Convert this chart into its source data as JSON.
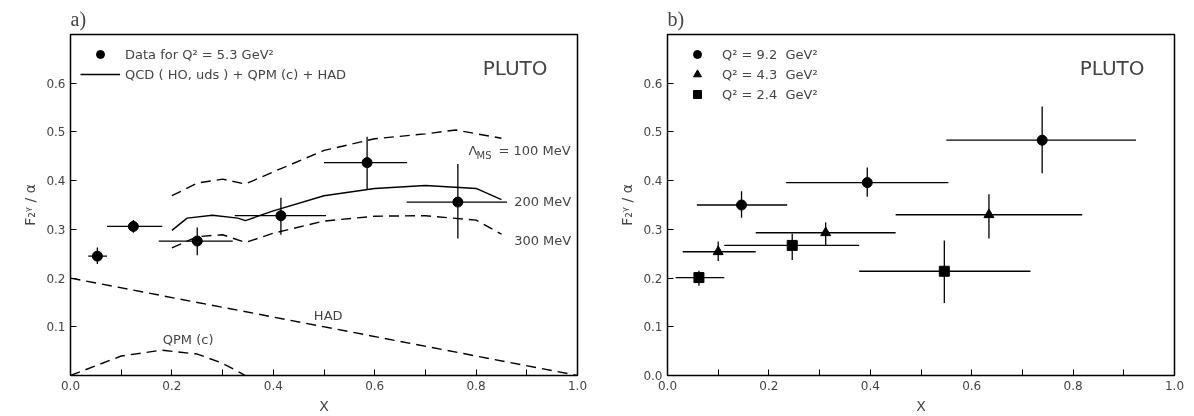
{
  "chart_data": [
    {
      "type": "scatter",
      "title": "a)",
      "xlabel": "X",
      "ylabel": "F₂ᵞ / α",
      "xlim": [
        0,
        1.0
      ],
      "ylim": [
        0,
        0.7
      ],
      "xticks": [
        {
          "value": 0,
          "label": "0.0"
        },
        {
          "value": 0.1,
          "label": null
        },
        0.2,
        {
          "value": 0.3,
          "label": null
        },
        0.4,
        {
          "value": 0.5,
          "label": null
        },
        0.6,
        {
          "value": 0.7,
          "label": null
        },
        0.8,
        {
          "value": 0.9,
          "label": null
        },
        {
          "value": 1.0,
          "label": "1.0"
        }
      ],
      "yticks": [
        {
          "value": 0,
          "label": null
        },
        0.1,
        0.2,
        0.3,
        0.4,
        0.5,
        0.6
      ],
      "grid": false,
      "legend": "top left",
      "series": [
        {
          "name": "Data for Q² = 5.3 GeV²",
          "marker": "circle",
          "color": "#000000",
          "x": [
            0.053,
            0.124,
            0.25,
            0.415,
            0.585,
            0.764
          ],
          "values": [
            0.245,
            0.306,
            0.276,
            0.328,
            0.437,
            0.356
          ],
          "errors": [
            [
              0.229,
              0.263
            ],
            [
              0.293,
              0.319
            ],
            [
              0.247,
              0.304
            ],
            [
              0.289,
              0.365
            ],
            [
              0.382,
              0.49
            ],
            [
              0.281,
              0.434
            ]
          ],
          "xerrors": [
            [
              0.035,
              0.072
            ],
            [
              0.072,
              0.181
            ],
            [
              0.174,
              0.32
            ],
            [
              0.324,
              0.504
            ],
            [
              0.5,
              0.664
            ],
            [
              0.663,
              0.861
            ]
          ]
        },
        {
          "type": "line",
          "line_style": "dashed",
          "color": "#000000",
          "x": [
            0.2,
            0.25,
            0.3,
            0.345,
            0.4,
            0.5,
            0.6,
            0.7,
            0.76,
            0.85
          ],
          "values": [
            0.369,
            0.395,
            0.403,
            0.393,
            0.418,
            0.462,
            0.486,
            0.496,
            0.504,
            0.487
          ]
        },
        {
          "name": "QCD ( HO, uds ) + QPM (c) + HAD",
          "type": "line",
          "line_style": "solid",
          "color": "#000000",
          "x": [
            0.2,
            0.23,
            0.28,
            0.33,
            0.345,
            0.4,
            0.5,
            0.6,
            0.7,
            0.8,
            0.85
          ],
          "values": [
            0.298,
            0.323,
            0.329,
            0.323,
            0.318,
            0.338,
            0.369,
            0.384,
            0.39,
            0.384,
            0.361
          ]
        },
        {
          "type": "line",
          "line_style": "dashed",
          "color": "#000000",
          "x": [
            0.2,
            0.25,
            0.3,
            0.345,
            0.4,
            0.5,
            0.6,
            0.7,
            0.8,
            0.85
          ],
          "values": [
            0.262,
            0.285,
            0.289,
            0.273,
            0.292,
            0.317,
            0.327,
            0.328,
            0.319,
            0.29
          ]
        },
        {
          "type": "line",
          "line_style": "dashed",
          "color": "#000000",
          "x": [
            0,
            1.0
          ],
          "values": [
            0.2,
            0
          ]
        },
        {
          "type": "line",
          "line_style": "dashed",
          "color": "#000000",
          "x": [
            0,
            0.1,
            0.18,
            0.25,
            0.3,
            0.345
          ],
          "values": [
            0,
            0.04,
            0.052,
            0.044,
            0.025,
            0
          ]
        }
      ],
      "annotations": [
        "PLUTO",
        "Λ$_{MS}$ = 100 MeV",
        "200 MeV",
        "300 MeV",
        "HAD",
        "QPM (c)"
      ]
    },
    {
      "type": "scatter",
      "title": "b)",
      "xlabel": "X",
      "ylabel": "F₂ᵞ / α",
      "xlim": [
        0,
        1.0
      ],
      "ylim": [
        0,
        0.7
      ],
      "xticks": [
        {
          "value": 0,
          "label": "0.0"
        },
        {
          "value": 0.1,
          "label": null
        },
        0.2,
        {
          "value": 0.3,
          "label": null
        },
        0.4,
        {
          "value": 0.5,
          "label": null
        },
        0.6,
        {
          "value": 0.7,
          "label": null
        },
        0.8,
        {
          "value": 0.9,
          "label": null
        },
        {
          "value": 1.0,
          "label": "1.0"
        }
      ],
      "yticks": [
        {
          "value": 0,
          "label": "0.0"
        },
        0.1,
        0.2,
        0.3,
        0.4,
        0.5,
        0.6
      ],
      "grid": false,
      "legend": "top left",
      "series": [
        {
          "name": "Q² = 9.2  GeV²",
          "marker": "circle",
          "color": "#000000",
          "x": [
            0.146,
            0.394,
            0.739
          ],
          "values": [
            0.35,
            0.396,
            0.483
          ],
          "errors": [
            [
              0.324,
              0.378
            ],
            [
              0.367,
              0.427
            ],
            [
              0.415,
              0.552
            ]
          ],
          "xerrors": [
            [
              0.058,
              0.236
            ],
            [
              0.234,
              0.554
            ],
            [
              0.55,
              0.924
            ]
          ]
        },
        {
          "name": "Q² = 4.3  GeV²",
          "marker": "triangle",
          "color": "#000000",
          "x": [
            0.1,
            0.312,
            0.634
          ],
          "values": [
            0.254,
            0.293,
            0.33
          ],
          "errors": [
            [
              0.235,
              0.275
            ],
            [
              0.266,
              0.314
            ],
            [
              0.281,
              0.372
            ]
          ],
          "xerrors": [
            [
              0.03,
              0.174
            ],
            [
              0.174,
              0.45
            ],
            [
              0.45,
              0.818
            ]
          ]
        },
        {
          "name": "Q² = 2.4  GeV²",
          "marker": "square",
          "color": "#000000",
          "x": [
            0.062,
            0.246,
            0.546
          ],
          "values": [
            0.201,
            0.267,
            0.214
          ],
          "errors": [
            [
              0.184,
              0.215
            ],
            [
              0.237,
              0.291
            ],
            [
              0.149,
              0.277
            ]
          ],
          "xerrors": [
            [
              0.016,
              0.112
            ],
            [
              0.112,
              0.378
            ],
            [
              0.378,
              0.716
            ]
          ]
        }
      ],
      "annotations": [
        "PLUTO"
      ]
    }
  ]
}
